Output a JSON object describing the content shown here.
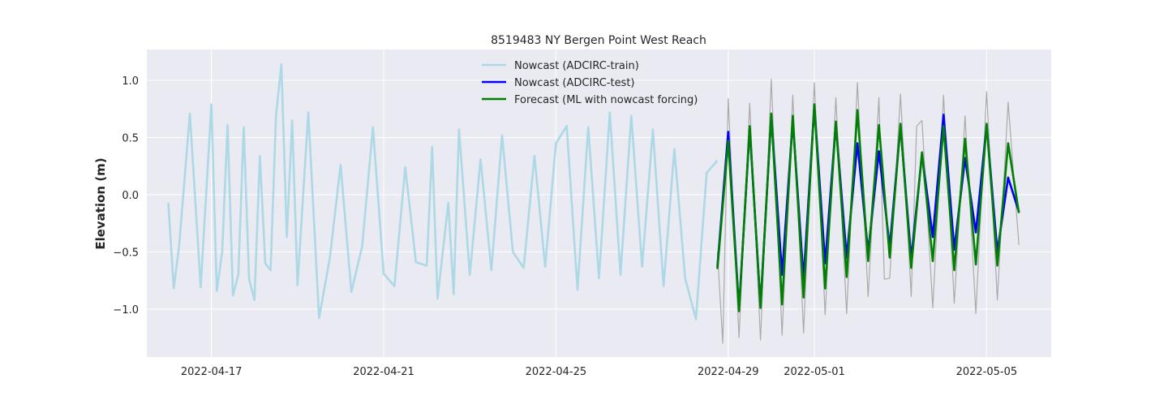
{
  "chart_data": {
    "type": "line",
    "title": "8519483 NY Bergen Point West Reach",
    "xlabel": "",
    "ylabel": "Elevation (m)",
    "xlim": [
      "2022-04-15T12:00",
      "2022-05-06T12:00"
    ],
    "ylim": [
      -1.42,
      1.27
    ],
    "x_ticks": [
      "2022-04-17",
      "2022-04-21",
      "2022-04-25",
      "2022-04-29",
      "2022-05-01",
      "2022-05-05"
    ],
    "y_ticks": [
      1.0,
      0.5,
      0.0,
      -0.5,
      -1.0
    ],
    "y_tick_labels": [
      "1.0",
      "0.5",
      "0.0",
      "−0.5",
      "−1.0"
    ],
    "grid": true,
    "legend_position": "top-center",
    "background": "#eaeaf2",
    "series": [
      {
        "name": "Nowcast (ADCIRC-train)",
        "color": "#add8e6",
        "x": [
          "2022-04-16T00:00",
          "2022-04-16T03:00",
          "2022-04-16T06:00",
          "2022-04-16T12:00",
          "2022-04-16T18:00",
          "2022-04-17T00:00",
          "2022-04-17T03:00",
          "2022-04-17T06:00",
          "2022-04-17T09:00",
          "2022-04-17T12:00",
          "2022-04-17T15:00",
          "2022-04-17T18:00",
          "2022-04-17T21:00",
          "2022-04-18T00:00",
          "2022-04-18T03:00",
          "2022-04-18T06:00",
          "2022-04-18T09:00",
          "2022-04-18T12:00",
          "2022-04-18T15:00",
          "2022-04-18T18:00",
          "2022-04-18T21:00",
          "2022-04-19T00:00",
          "2022-04-19T06:00",
          "2022-04-19T12:00",
          "2022-04-19T18:00",
          "2022-04-20T00:00",
          "2022-04-20T06:00",
          "2022-04-20T12:00",
          "2022-04-20T18:00",
          "2022-04-21T00:00",
          "2022-04-21T06:00",
          "2022-04-21T12:00",
          "2022-04-21T18:00",
          "2022-04-22T00:00",
          "2022-04-22T03:00",
          "2022-04-22T06:00",
          "2022-04-22T12:00",
          "2022-04-22T15:00",
          "2022-04-22T18:00",
          "2022-04-23T00:00",
          "2022-04-23T06:00",
          "2022-04-23T12:00",
          "2022-04-23T18:00",
          "2022-04-24T00:00",
          "2022-04-24T06:00",
          "2022-04-24T12:00",
          "2022-04-24T18:00",
          "2022-04-25T00:00",
          "2022-04-25T06:00",
          "2022-04-25T12:00",
          "2022-04-25T18:00",
          "2022-04-26T00:00",
          "2022-04-26T06:00",
          "2022-04-26T12:00",
          "2022-04-26T18:00",
          "2022-04-27T00:00",
          "2022-04-27T06:00",
          "2022-04-27T12:00",
          "2022-04-27T18:00",
          "2022-04-28T00:00",
          "2022-04-28T06:00",
          "2022-04-28T12:00",
          "2022-04-28T18:00"
        ],
        "values": [
          -0.07,
          -0.82,
          -0.45,
          0.71,
          -0.81,
          0.79,
          -0.84,
          -0.5,
          0.61,
          -0.88,
          -0.7,
          0.59,
          -0.74,
          -0.92,
          0.34,
          -0.6,
          -0.66,
          0.69,
          1.14,
          -0.37,
          0.65,
          -0.79,
          0.72,
          -1.08,
          -0.55,
          0.26,
          -0.85,
          -0.45,
          0.59,
          -0.69,
          -0.8,
          0.24,
          -0.59,
          -0.62,
          0.42,
          -0.91,
          -0.07,
          -0.87,
          0.57,
          -0.7,
          0.31,
          -0.66,
          0.52,
          -0.5,
          -0.64,
          0.34,
          -0.63,
          0.45,
          0.6,
          -0.83,
          0.59,
          -0.73,
          0.72,
          -0.7,
          0.69,
          -0.63,
          0.57,
          -0.8,
          0.4,
          -0.73,
          -1.09,
          0.19,
          0.3
        ]
      },
      {
        "name": "Nowcast (ADCIRC-test)",
        "color": "#0000ff",
        "x": [
          "2022-04-28T18:00",
          "2022-04-29T00:00",
          "2022-04-29T06:00",
          "2022-04-29T12:00",
          "2022-04-29T18:00",
          "2022-04-30T00:00",
          "2022-04-30T06:00",
          "2022-04-30T12:00",
          "2022-04-30T18:00",
          "2022-05-01T00:00",
          "2022-05-01T06:00",
          "2022-05-01T12:00",
          "2022-05-01T18:00",
          "2022-05-02T00:00",
          "2022-05-02T06:00",
          "2022-05-02T12:00",
          "2022-05-02T18:00",
          "2022-05-03T00:00",
          "2022-05-03T06:00",
          "2022-05-03T12:00",
          "2022-05-03T18:00",
          "2022-05-04T00:00",
          "2022-05-04T06:00",
          "2022-05-04T12:00",
          "2022-05-04T18:00",
          "2022-05-05T00:00",
          "2022-05-05T06:00",
          "2022-05-05T12:00",
          "2022-05-05T18:00"
        ],
        "values": [
          -0.63,
          0.55,
          -1.0,
          0.58,
          -0.97,
          0.69,
          -0.7,
          0.65,
          -0.74,
          0.78,
          -0.6,
          0.62,
          -0.55,
          0.45,
          -0.5,
          0.38,
          -0.46,
          0.6,
          -0.56,
          0.35,
          -0.37,
          0.7,
          -0.48,
          0.32,
          -0.33,
          0.61,
          -0.5,
          0.15,
          -0.15
        ]
      },
      {
        "name": "Forecast (ML with nowcast forcing)",
        "color": "#008000",
        "x": [
          "2022-04-28T18:00",
          "2022-04-29T00:00",
          "2022-04-29T06:00",
          "2022-04-29T12:00",
          "2022-04-29T18:00",
          "2022-04-30T00:00",
          "2022-04-30T06:00",
          "2022-04-30T12:00",
          "2022-04-30T18:00",
          "2022-05-01T00:00",
          "2022-05-01T06:00",
          "2022-05-01T12:00",
          "2022-05-01T18:00",
          "2022-05-02T00:00",
          "2022-05-02T06:00",
          "2022-05-02T12:00",
          "2022-05-02T18:00",
          "2022-05-03T00:00",
          "2022-05-03T06:00",
          "2022-05-03T12:00",
          "2022-05-03T18:00",
          "2022-05-04T00:00",
          "2022-05-04T06:00",
          "2022-05-04T12:00",
          "2022-05-04T18:00",
          "2022-05-05T00:00",
          "2022-05-05T06:00",
          "2022-05-05T12:00",
          "2022-05-05T18:00"
        ],
        "values": [
          -0.65,
          0.47,
          -1.02,
          0.6,
          -0.99,
          0.71,
          -0.96,
          0.69,
          -0.9,
          0.79,
          -0.82,
          0.64,
          -0.72,
          0.74,
          -0.58,
          0.61,
          -0.55,
          0.62,
          -0.64,
          0.37,
          -0.58,
          0.6,
          -0.66,
          0.49,
          -0.61,
          0.62,
          -0.62,
          0.45,
          -0.16
        ]
      },
      {
        "name": "",
        "color": "#aaaaaa",
        "x": [
          "2022-04-28T18:00",
          "2022-04-28T21:00",
          "2022-04-29T00:00",
          "2022-04-29T06:00",
          "2022-04-29T12:00",
          "2022-04-29T18:00",
          "2022-04-30T00:00",
          "2022-04-30T06:00",
          "2022-04-30T12:00",
          "2022-04-30T18:00",
          "2022-05-01T00:00",
          "2022-05-01T06:00",
          "2022-05-01T12:00",
          "2022-05-01T18:00",
          "2022-05-02T00:00",
          "2022-05-02T06:00",
          "2022-05-02T12:00",
          "2022-05-02T15:00",
          "2022-05-02T18:00",
          "2022-05-03T00:00",
          "2022-05-03T06:00",
          "2022-05-03T09:00",
          "2022-05-03T12:00",
          "2022-05-03T18:00",
          "2022-05-04T00:00",
          "2022-05-04T06:00",
          "2022-05-04T12:00",
          "2022-05-04T18:00",
          "2022-05-05T00:00",
          "2022-05-05T06:00",
          "2022-05-05T12:00",
          "2022-05-05T18:00"
        ],
        "values": [
          -0.5,
          -1.3,
          0.84,
          -1.25,
          0.8,
          -1.27,
          1.01,
          -1.23,
          0.87,
          -1.21,
          0.98,
          -1.05,
          0.85,
          -1.04,
          0.98,
          -0.89,
          0.85,
          -0.74,
          -0.73,
          0.88,
          -0.89,
          0.6,
          0.65,
          -0.99,
          0.87,
          -0.95,
          0.69,
          -1.04,
          0.9,
          -0.92,
          0.81,
          -0.44
        ]
      }
    ]
  }
}
